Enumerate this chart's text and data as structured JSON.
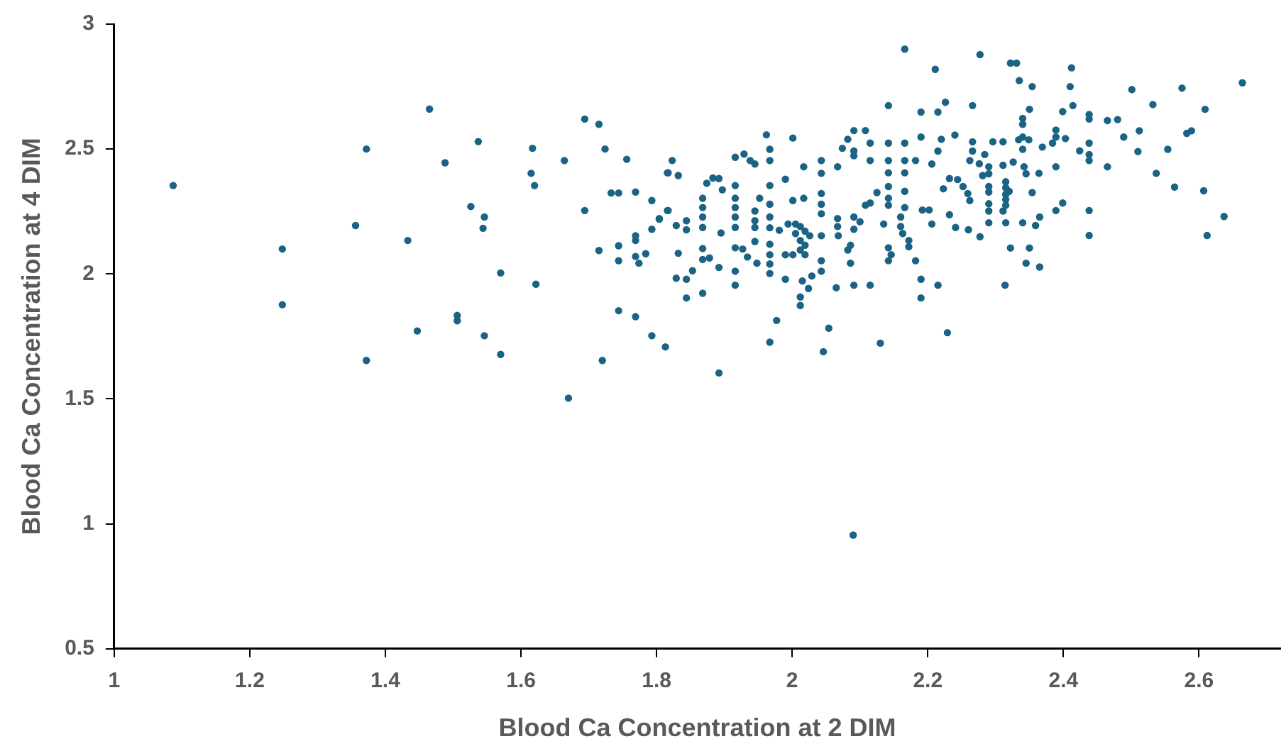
{
  "chart_data": {
    "type": "scatter",
    "xlabel": "Blood Ca Concentration at 2 DIM",
    "ylabel": "Blood Ca Concentration at 4 DIM",
    "xlim": [
      1,
      2.72
    ],
    "ylim": [
      0.5,
      3
    ],
    "xticks": [
      1,
      1.2,
      1.4,
      1.6,
      1.8,
      2,
      2.2,
      2.4,
      2.6
    ],
    "yticks": [
      0.5,
      1,
      1.5,
      2,
      2.5,
      3
    ],
    "grid": false,
    "legend": false,
    "marker": "circle",
    "series": [
      {
        "color": "#1b6384",
        "x": [
          1.087,
          1.248,
          1.248,
          1.372,
          1.372,
          1.356,
          1.433,
          1.465,
          1.447,
          1.488,
          1.506,
          1.506,
          1.526,
          1.537,
          1.546,
          1.544,
          1.546,
          1.57,
          1.57,
          1.617,
          1.615,
          1.62,
          1.622,
          1.664,
          1.67,
          1.694,
          1.694,
          1.715,
          1.715,
          1.72,
          1.724,
          1.733,
          1.744,
          1.744,
          1.744,
          1.744,
          1.756,
          1.769,
          1.769,
          1.769,
          1.769,
          1.774,
          1.784,
          1.769,
          1.793,
          1.793,
          1.793,
          1.804,
          1.813,
          1.816,
          1.816,
          2.166,
          2.277,
          2.211,
          2.226,
          2.142,
          2.19,
          2.215,
          2.266,
          2.091,
          2.108,
          1.962,
          2.001,
          2.24,
          1.967,
          1.967,
          1.916,
          1.929,
          1.823,
          1.817,
          1.832,
          1.874,
          1.883,
          1.892,
          1.938,
          1.945,
          2.017,
          2.043,
          2.043,
          2.067,
          2.074,
          2.082,
          2.091,
          2.091,
          2.115,
          2.115,
          2.142,
          2.142,
          2.142,
          2.166,
          2.166,
          2.166,
          2.19,
          2.182,
          2.206,
          2.215,
          2.22,
          1.868,
          1.868,
          1.868,
          1.868,
          1.844,
          1.844,
          1.829,
          1.804,
          1.817,
          1.832,
          1.868,
          1.868,
          1.878,
          1.892,
          1.853,
          1.844,
          1.829,
          1.844,
          1.868,
          1.895,
          1.916,
          1.916,
          1.916,
          1.916,
          1.916,
          1.897,
          1.916,
          1.927,
          1.934,
          1.916,
          1.916,
          1.945,
          1.945,
          1.945,
          1.945,
          1.948,
          1.967,
          1.967,
          1.967,
          1.967,
          1.967,
          1.967,
          1.967,
          1.967,
          1.952,
          1.99,
          2.001,
          1.981,
          1.994,
          2.005,
          2.012,
          2.019,
          2.026,
          2.005,
          2.012,
          2.019,
          2.019,
          1.99,
          2.001,
          2.012,
          1.99,
          2.015,
          2.012,
          2.012,
          2.024,
          2.029,
          2.043,
          2.043,
          2.043,
          2.043,
          2.043,
          2.043,
          2.017,
          2.067,
          2.067,
          2.068,
          2.065,
          2.086,
          2.082,
          2.086,
          2.091,
          2.091,
          2.1,
          2.091,
          2.115,
          2.115,
          2.108,
          2.125,
          2.142,
          2.142,
          2.142,
          2.135,
          2.142,
          2.146,
          2.142,
          2.16,
          2.16,
          2.163,
          2.166,
          2.166,
          2.172,
          2.172,
          2.182,
          2.19,
          2.19,
          2.215,
          2.192,
          2.202,
          2.206,
          2.223,
          2.232,
          2.244,
          2.232,
          2.241,
          2.26,
          2.252,
          2.259,
          2.262,
          2.262,
          2.266,
          2.266,
          1.977,
          1.967,
          2.054,
          2.046,
          2.13,
          2.229,
          1.892,
          2.322,
          2.331,
          2.412,
          2.335,
          2.354,
          2.41,
          2.501,
          2.575,
          2.664,
          2.35,
          2.399,
          2.414,
          2.532,
          2.609,
          2.34,
          2.34,
          2.438,
          2.438,
          2.465,
          2.48,
          2.512,
          2.489,
          2.582,
          2.589,
          2.389,
          2.389,
          2.403,
          2.296,
          2.311,
          2.34,
          2.334,
          2.349,
          2.34,
          2.369,
          2.384,
          2.438,
          2.438,
          2.438,
          2.424,
          2.51,
          2.554,
          2.284,
          2.276,
          2.29,
          2.29,
          2.281,
          2.311,
          2.326,
          2.342,
          2.345,
          2.364,
          2.389,
          2.465,
          2.537,
          2.564,
          2.607,
          2.29,
          2.29,
          2.315,
          2.315,
          2.315,
          2.32,
          2.315,
          2.315,
          2.354,
          2.29,
          2.29,
          2.29,
          2.311,
          2.315,
          2.34,
          2.359,
          2.365,
          2.389,
          2.399,
          2.438,
          2.438,
          2.637,
          2.612,
          2.277,
          2.322,
          2.35,
          2.345,
          2.365,
          2.314,
          2.09
        ],
        "values": [
          2.354,
          2.1,
          1.877,
          2.5,
          1.654,
          2.194,
          2.134,
          2.66,
          1.772,
          2.445,
          1.834,
          1.813,
          2.27,
          2.53,
          2.228,
          2.183,
          1.753,
          2.004,
          1.678,
          2.503,
          2.403,
          2.354,
          1.959,
          2.454,
          1.503,
          2.62,
          2.254,
          2.599,
          2.094,
          1.654,
          2.5,
          2.324,
          2.324,
          2.113,
          2.053,
          1.853,
          2.459,
          2.328,
          2.153,
          2.134,
          2.07,
          2.043,
          2.081,
          1.829,
          2.294,
          2.179,
          1.753,
          2.219,
          1.708,
          2.405,
          2.254,
          2.9,
          2.878,
          2.819,
          2.687,
          2.674,
          2.648,
          2.648,
          2.674,
          2.574,
          2.574,
          2.557,
          2.544,
          2.556,
          2.499,
          2.454,
          2.467,
          2.48,
          2.454,
          2.405,
          2.394,
          2.363,
          2.384,
          2.382,
          2.454,
          2.44,
          2.429,
          2.454,
          2.403,
          2.429,
          2.503,
          2.539,
          2.492,
          2.473,
          2.524,
          2.454,
          2.524,
          2.454,
          2.405,
          2.524,
          2.454,
          2.405,
          2.548,
          2.454,
          2.44,
          2.492,
          2.539,
          2.303,
          2.266,
          2.228,
          2.186,
          2.213,
          2.177,
          2.194,
          2.222,
          2.254,
          2.083,
          2.102,
          2.058,
          2.064,
          2.026,
          2.013,
          1.979,
          1.983,
          1.904,
          1.923,
          2.164,
          2.354,
          2.303,
          2.266,
          2.228,
          2.186,
          2.337,
          2.105,
          2.1,
          2.068,
          2.011,
          1.955,
          2.252,
          2.213,
          2.186,
          2.13,
          2.043,
          2.354,
          2.279,
          2.228,
          2.185,
          2.119,
          2.077,
          2.04,
          2.002,
          2.303,
          2.379,
          2.294,
          2.175,
          2.2,
          2.2,
          2.19,
          2.171,
          2.153,
          2.162,
          2.134,
          2.115,
          2.077,
          2.077,
          2.077,
          2.096,
          1.979,
          1.972,
          1.908,
          1.874,
          1.942,
          1.992,
          2.322,
          2.279,
          2.241,
          2.153,
          2.053,
          2.011,
          2.303,
          2.222,
          2.19,
          2.153,
          1.945,
          2.115,
          2.096,
          2.043,
          2.228,
          2.179,
          2.209,
          1.955,
          1.955,
          2.284,
          2.275,
          2.326,
          2.35,
          2.303,
          2.275,
          2.2,
          2.105,
          2.077,
          2.053,
          2.228,
          2.19,
          2.162,
          2.266,
          2.331,
          2.134,
          2.109,
          2.053,
          1.979,
          1.904,
          1.955,
          2.256,
          2.256,
          2.2,
          2.341,
          2.382,
          2.378,
          2.237,
          2.186,
          2.177,
          2.35,
          2.322,
          2.294,
          2.454,
          2.529,
          2.492,
          1.814,
          1.727,
          1.783,
          1.689,
          1.723,
          1.765,
          1.604,
          2.844,
          2.844,
          2.825,
          2.774,
          2.75,
          2.75,
          2.738,
          2.744,
          2.765,
          2.659,
          2.65,
          2.674,
          2.678,
          2.659,
          2.623,
          2.599,
          2.638,
          2.62,
          2.614,
          2.618,
          2.573,
          2.548,
          2.563,
          2.573,
          2.576,
          2.548,
          2.542,
          2.529,
          2.529,
          2.548,
          2.537,
          2.537,
          2.499,
          2.508,
          2.524,
          2.524,
          2.478,
          2.454,
          2.493,
          2.49,
          2.499,
          2.478,
          2.441,
          2.429,
          2.401,
          2.394,
          2.435,
          2.448,
          2.429,
          2.401,
          2.403,
          2.429,
          2.429,
          2.403,
          2.348,
          2.333,
          2.35,
          2.328,
          2.369,
          2.345,
          2.318,
          2.331,
          2.298,
          2.275,
          2.326,
          2.281,
          2.252,
          2.205,
          2.252,
          2.205,
          2.205,
          2.194,
          2.228,
          2.254,
          2.284,
          2.254,
          2.154,
          2.23,
          2.154,
          2.149,
          2.104,
          2.104,
          2.043,
          2.028,
          1.955,
          0.955
        ]
      }
    ]
  }
}
